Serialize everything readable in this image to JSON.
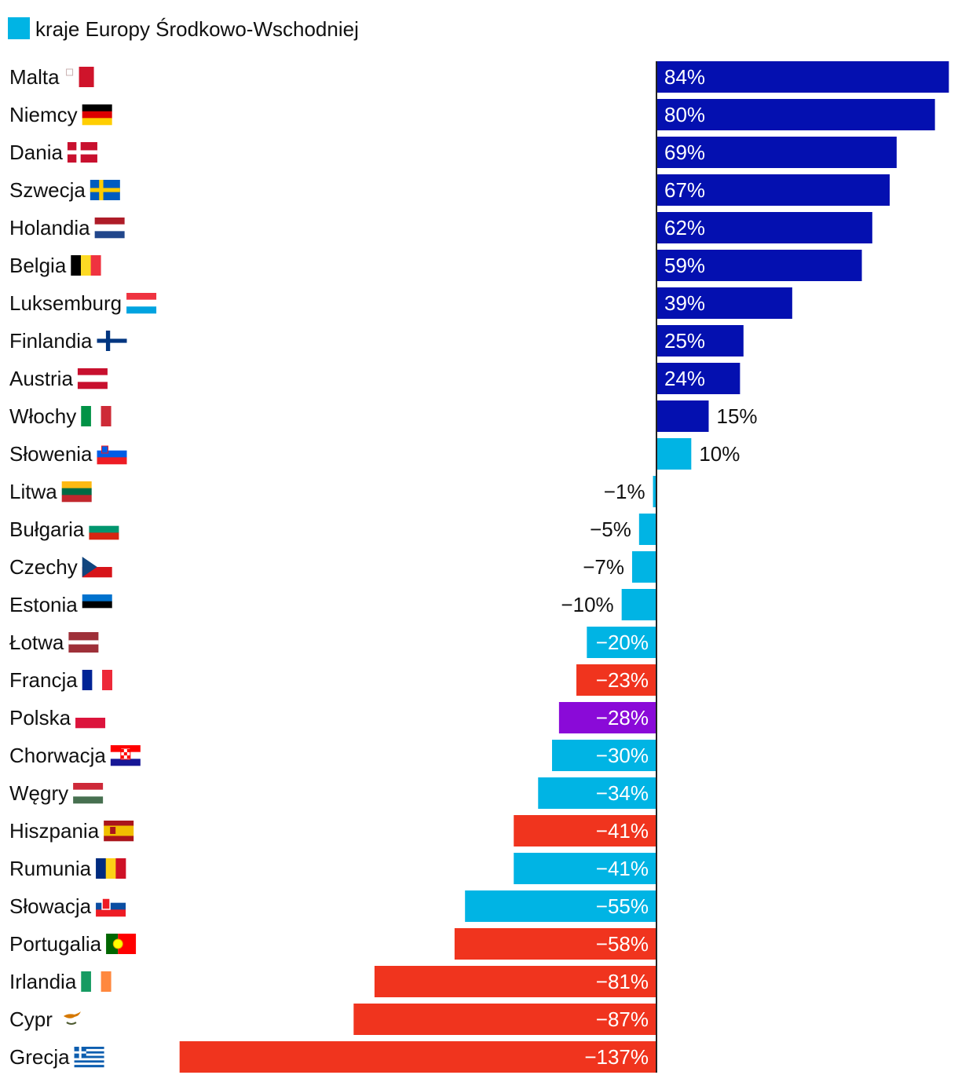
{
  "chart_data": {
    "type": "bar",
    "orientation": "horizontal",
    "title": "",
    "legend": [
      {
        "label": "kraje Europy Środkowo-Wschodniej",
        "color": "#00b4e4"
      }
    ],
    "xlim": [
      -137,
      84
    ],
    "colors": {
      "dark_blue": "#0410b0",
      "cee": "#00b4e4",
      "red": "#f0341e",
      "poland": "#8a0ad8"
    },
    "bars": [
      {
        "country": "Malta",
        "value": 84,
        "label": "84%",
        "color": "#0410b0",
        "flag": "malta"
      },
      {
        "country": "Niemcy",
        "value": 80,
        "label": "80%",
        "color": "#0410b0",
        "flag": "germany"
      },
      {
        "country": "Dania",
        "value": 69,
        "label": "69%",
        "color": "#0410b0",
        "flag": "denmark"
      },
      {
        "country": "Szwecja",
        "value": 67,
        "label": "67%",
        "color": "#0410b0",
        "flag": "sweden"
      },
      {
        "country": "Holandia",
        "value": 62,
        "label": "62%",
        "color": "#0410b0",
        "flag": "netherlands"
      },
      {
        "country": "Belgia",
        "value": 59,
        "label": "59%",
        "color": "#0410b0",
        "flag": "belgium"
      },
      {
        "country": "Luksemburg",
        "value": 39,
        "label": "39%",
        "color": "#0410b0",
        "flag": "luxembourg"
      },
      {
        "country": "Finlandia",
        "value": 25,
        "label": "25%",
        "color": "#0410b0",
        "flag": "finland"
      },
      {
        "country": "Austria",
        "value": 24,
        "label": "24%",
        "color": "#0410b0",
        "flag": "austria"
      },
      {
        "country": "Włochy",
        "value": 15,
        "label": "15%",
        "color": "#0410b0",
        "flag": "italy"
      },
      {
        "country": "Słowenia",
        "value": 10,
        "label": "10%",
        "color": "#00b4e4",
        "flag": "slovenia"
      },
      {
        "country": "Litwa",
        "value": -1,
        "label": "−1%",
        "color": "#00b4e4",
        "flag": "lithuania"
      },
      {
        "country": "Bułgaria",
        "value": -5,
        "label": "−5%",
        "color": "#00b4e4",
        "flag": "bulgaria"
      },
      {
        "country": "Czechy",
        "value": -7,
        "label": "−7%",
        "color": "#00b4e4",
        "flag": "czechia"
      },
      {
        "country": "Estonia",
        "value": -10,
        "label": "−10%",
        "color": "#00b4e4",
        "flag": "estonia"
      },
      {
        "country": "Łotwa",
        "value": -20,
        "label": "−20%",
        "color": "#00b4e4",
        "flag": "latvia"
      },
      {
        "country": "Francja",
        "value": -23,
        "label": "−23%",
        "color": "#f0341e",
        "flag": "france"
      },
      {
        "country": "Polska",
        "value": -28,
        "label": "−28%",
        "color": "#8a0ad8",
        "flag": "poland"
      },
      {
        "country": "Chorwacja",
        "value": -30,
        "label": "−30%",
        "color": "#00b4e4",
        "flag": "croatia"
      },
      {
        "country": "Węgry",
        "value": -34,
        "label": "−34%",
        "color": "#00b4e4",
        "flag": "hungary"
      },
      {
        "country": "Hiszpania",
        "value": -41,
        "label": "−41%",
        "color": "#f0341e",
        "flag": "spain"
      },
      {
        "country": "Rumunia",
        "value": -41,
        "label": "−41%",
        "color": "#00b4e4",
        "flag": "romania"
      },
      {
        "country": "Słowacja",
        "value": -55,
        "label": "−55%",
        "color": "#00b4e4",
        "flag": "slovakia"
      },
      {
        "country": "Portugalia",
        "value": -58,
        "label": "−58%",
        "color": "#f0341e",
        "flag": "portugal"
      },
      {
        "country": "Irlandia",
        "value": -81,
        "label": "−81%",
        "color": "#f0341e",
        "flag": "ireland"
      },
      {
        "country": "Cypr",
        "value": -87,
        "label": "−87%",
        "color": "#f0341e",
        "flag": "cyprus"
      },
      {
        "country": "Grecja",
        "value": -137,
        "label": "−137%",
        "color": "#f0341e",
        "flag": "greece"
      }
    ]
  }
}
